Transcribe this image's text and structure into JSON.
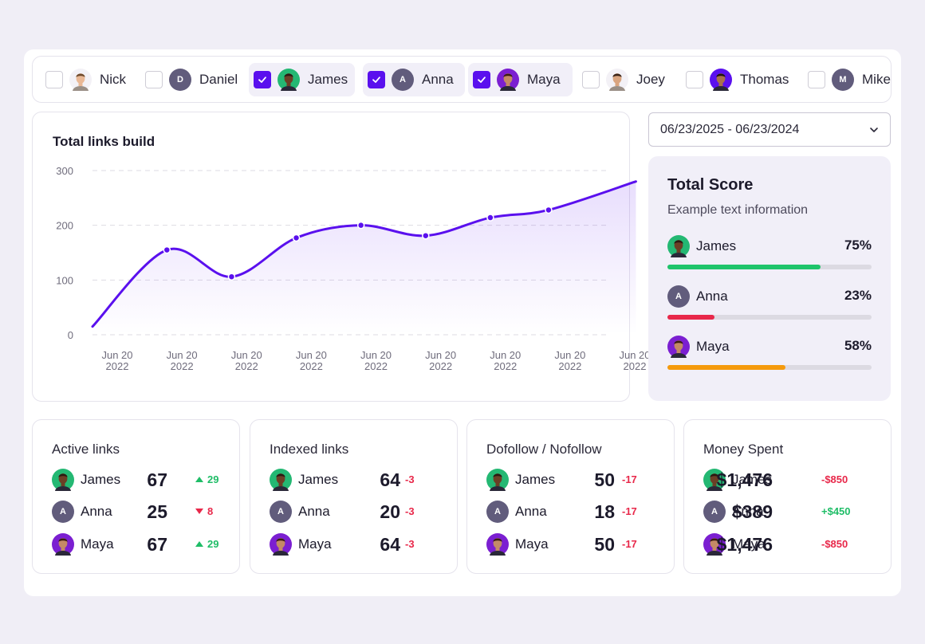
{
  "users": [
    {
      "name": "Nick",
      "checked": false,
      "avatar": "photo",
      "skin": "#e9b896",
      "hair": "#6e4a2c",
      "bg": "#ffffff"
    },
    {
      "name": "Daniel",
      "checked": false,
      "avatar": "letter",
      "initial": "D"
    },
    {
      "name": "James",
      "checked": true,
      "avatar": "photo",
      "skin": "#6b3f26",
      "hair": "#2a1a12",
      "bg": "#24b873"
    },
    {
      "name": "Anna",
      "checked": true,
      "avatar": "letter",
      "initial": "A"
    },
    {
      "name": "Maya",
      "checked": true,
      "avatar": "photo",
      "skin": "#c48a66",
      "hair": "#3b1d12",
      "bg": "#7b1fd1"
    },
    {
      "name": "Joey",
      "checked": false,
      "avatar": "photo",
      "skin": "#d9a47f",
      "hair": "#3a2418",
      "bg": "#ffffff"
    },
    {
      "name": "Thomas",
      "checked": false,
      "avatar": "photo",
      "skin": "#a9704d",
      "hair": "#1e130d",
      "bg": "#5a10ee"
    },
    {
      "name": "Mike",
      "checked": false,
      "avatar": "letter",
      "initial": "M"
    }
  ],
  "chart": {
    "title": "Total links build"
  },
  "chart_data": {
    "type": "line",
    "title": "Total links build",
    "xlabel": "",
    "ylabel": "",
    "x": [
      "Jun 20 2022",
      "Jun 20 2022",
      "Jun 20 2022",
      "Jun 20 2022",
      "Jun 20 2022",
      "Jun 20 2022",
      "Jun 20 2022",
      "Jun 20 2022",
      "Jun 20 2022"
    ],
    "yticks": [
      "300",
      "200",
      "100",
      "0"
    ],
    "ylim": [
      0,
      300
    ],
    "grid": true,
    "color": "#5a10ee",
    "line_points": [
      {
        "x": 0,
        "y": 15
      },
      {
        "x": 1.15,
        "y": 155
      },
      {
        "x": 2.15,
        "y": 106
      },
      {
        "x": 3.15,
        "y": 177
      },
      {
        "x": 4.15,
        "y": 200
      },
      {
        "x": 5.15,
        "y": 181
      },
      {
        "x": 6.15,
        "y": 214
      },
      {
        "x": 7.05,
        "y": 228
      },
      {
        "x": 8.4,
        "y": 280
      }
    ],
    "markers": [
      1.15,
      2.15,
      3.15,
      4.15,
      5.15,
      6.15,
      7.05
    ]
  },
  "date_range": {
    "value": "06/23/2025 - 06/23/2024"
  },
  "score": {
    "title": "Total Score",
    "subtitle": "Example text information",
    "rows": [
      {
        "name": "James",
        "pct": "75%",
        "value": 0.75,
        "color": "#1fc46b",
        "user": 2
      },
      {
        "name": "Anna",
        "pct": "23%",
        "value": 0.23,
        "color": "#e8284a",
        "user": 3
      },
      {
        "name": "Maya",
        "pct": "58%",
        "value": 0.58,
        "color": "#f59a0c",
        "user": 4
      }
    ]
  },
  "stats": [
    {
      "title": "Active links",
      "rows": [
        {
          "name": "James",
          "value": "67",
          "delta": "29",
          "dir": "up",
          "arrow": true,
          "user": 2
        },
        {
          "name": "Anna",
          "value": "25",
          "delta": "8",
          "dir": "down",
          "arrow": true,
          "user": 3
        },
        {
          "name": "Maya",
          "value": "67",
          "delta": "29",
          "dir": "up",
          "arrow": true,
          "user": 4
        }
      ]
    },
    {
      "title": "Indexed links",
      "rows": [
        {
          "name": "James",
          "value": "64",
          "delta": "-3",
          "dir": "down",
          "arrow": false,
          "user": 2
        },
        {
          "name": "Anna",
          "value": "20",
          "delta": "-3",
          "dir": "down",
          "arrow": false,
          "user": 3
        },
        {
          "name": "Maya",
          "value": "64",
          "delta": "-3",
          "dir": "down",
          "arrow": false,
          "user": 4
        }
      ]
    },
    {
      "title": "Dofollow / Nofollow",
      "rows": [
        {
          "name": "James",
          "value": "50",
          "delta": "-17",
          "dir": "down",
          "arrow": false,
          "user": 2
        },
        {
          "name": "Anna",
          "value": "18",
          "delta": "-17",
          "dir": "down",
          "arrow": false,
          "user": 3
        },
        {
          "name": "Maya",
          "value": "50",
          "delta": "-17",
          "dir": "down",
          "arrow": false,
          "user": 4
        }
      ]
    },
    {
      "title": "Money Spent",
      "rows": [
        {
          "name": "James",
          "value": "$1,476",
          "delta": "-$850",
          "dir": "down",
          "arrow": false,
          "user": 2
        },
        {
          "name": "Anna",
          "value": "$389",
          "delta": "+$450",
          "dir": "up",
          "arrow": false,
          "user": 3
        },
        {
          "name": "Maya",
          "value": "$1,476",
          "delta": "-$850",
          "dir": "down",
          "arrow": false,
          "user": 4
        }
      ]
    }
  ]
}
